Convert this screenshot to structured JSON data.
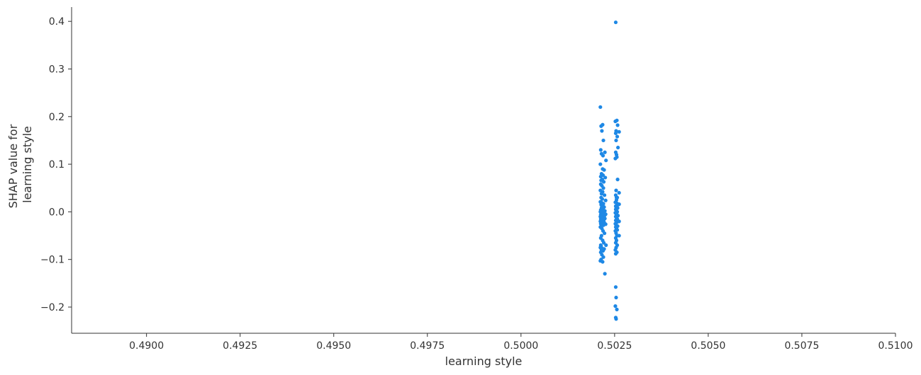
{
  "chart_data": {
    "type": "scatter",
    "xlabel": "learning style",
    "ylabel_lines": [
      "SHAP value for",
      "learning style"
    ],
    "xlim": [
      0.488,
      0.51
    ],
    "ylim": [
      -0.255,
      0.43
    ],
    "xticks": [
      0.49,
      0.4925,
      0.495,
      0.4975,
      0.5,
      0.5025,
      0.505,
      0.5075,
      0.51
    ],
    "xtick_labels": [
      "0.4900",
      "0.4925",
      "0.4950",
      "0.4975",
      "0.5000",
      "0.5025",
      "0.5050",
      "0.5075",
      "0.5100"
    ],
    "yticks": [
      -0.2,
      -0.1,
      0.0,
      0.1,
      0.2,
      0.3,
      0.4
    ],
    "ytick_labels": [
      "−0.2",
      "−0.1",
      "0.0",
      "0.1",
      "0.2",
      "0.3",
      "0.4"
    ],
    "grid": false,
    "point_color": "#1E88E5",
    "series": [
      {
        "x": [
          0.50212,
          0.50218,
          0.50214,
          0.50216,
          0.5022,
          0.50213,
          0.50224,
          0.50215,
          0.50219,
          0.50227,
          0.50212,
          0.50218,
          0.50222,
          0.50215,
          0.50219,
          0.50213,
          0.50225,
          0.50217,
          0.50214,
          0.50221,
          0.50213,
          0.50216,
          0.5022,
          0.50212,
          0.50218,
          0.50215,
          0.50223,
          0.50214,
          0.50217,
          0.50226,
          0.50212,
          0.50216,
          0.5022,
          0.50214,
          0.50218,
          0.50222,
          0.50215,
          0.50219,
          0.50213,
          0.50224,
          0.50212,
          0.50217,
          0.50221,
          0.50215,
          0.50219,
          0.50226,
          0.50213,
          0.50218,
          0.50223,
          0.50216,
          0.50212,
          0.5022,
          0.50215,
          0.50218,
          0.50224,
          0.50213,
          0.50217,
          0.50221,
          0.50214,
          0.50219,
          0.50212,
          0.50216,
          0.50222,
          0.50215,
          0.50218,
          0.50213,
          0.50226,
          0.50217,
          0.5022,
          0.50214,
          0.50212,
          0.50216,
          0.50219,
          0.50223,
          0.50215,
          0.50213,
          0.50218,
          0.50221,
          0.50227,
          0.50214,
          0.50212,
          0.50217,
          0.50222,
          0.50215,
          0.50219,
          0.50213,
          0.50216,
          0.5022,
          0.50214,
          0.50212,
          0.50218,
          0.50213,
          0.50216,
          0.50224,
          0.50253,
          0.50256,
          0.50252,
          0.50258,
          0.50254,
          0.50262,
          0.50253,
          0.50257,
          0.50254,
          0.50259,
          0.50253,
          0.50255,
          0.50256,
          0.50252,
          0.50258,
          0.50254,
          0.50262,
          0.50253,
          0.50257,
          0.50255,
          0.50252,
          0.50256,
          0.50259,
          0.50253,
          0.50254,
          0.50258,
          0.50253,
          0.50262,
          0.50255,
          0.50257,
          0.50252,
          0.50254,
          0.50256,
          0.50259,
          0.50253,
          0.50255,
          0.50257,
          0.50253,
          0.50262,
          0.50256,
          0.50252,
          0.50254,
          0.50258,
          0.50253,
          0.50255,
          0.50257,
          0.50252,
          0.50254,
          0.50256,
          0.50253,
          0.50262,
          0.50255,
          0.50253,
          0.50257,
          0.50254,
          0.50252,
          0.50256,
          0.50253,
          0.50255,
          0.50253,
          0.50254,
          0.50252,
          0.50256,
          0.50253,
          0.50254,
          0.50255
        ],
        "y": [
          0.22,
          0.183,
          0.18,
          0.17,
          0.15,
          0.13,
          0.125,
          0.122,
          0.118,
          0.108,
          0.1,
          0.09,
          0.088,
          0.08,
          0.077,
          0.074,
          0.072,
          0.068,
          0.066,
          0.063,
          0.058,
          0.055,
          0.05,
          0.045,
          0.042,
          0.038,
          0.035,
          0.03,
          0.027,
          0.024,
          0.021,
          0.019,
          0.017,
          0.015,
          0.012,
          0.01,
          0.008,
          0.006,
          0.004,
          0.002,
          0.0,
          -0.001,
          -0.002,
          -0.003,
          -0.004,
          -0.005,
          -0.006,
          -0.007,
          -0.008,
          -0.009,
          -0.01,
          -0.011,
          -0.012,
          -0.013,
          -0.014,
          -0.015,
          -0.016,
          -0.017,
          -0.018,
          -0.019,
          -0.02,
          -0.021,
          -0.022,
          -0.023,
          -0.024,
          -0.025,
          -0.026,
          -0.027,
          -0.028,
          -0.03,
          -0.032,
          -0.035,
          -0.04,
          -0.045,
          -0.05,
          -0.055,
          -0.06,
          -0.065,
          -0.07,
          -0.072,
          -0.075,
          -0.077,
          -0.078,
          -0.08,
          -0.082,
          -0.085,
          -0.09,
          -0.095,
          -0.1,
          -0.103,
          -0.105,
          -0.07,
          0.01,
          -0.13,
          0.398,
          0.192,
          0.19,
          0.182,
          0.17,
          0.168,
          0.165,
          0.158,
          0.15,
          0.135,
          0.125,
          0.12,
          0.115,
          0.112,
          0.068,
          0.045,
          0.04,
          0.035,
          0.03,
          0.025,
          0.02,
          0.018,
          0.015,
          0.012,
          0.01,
          0.008,
          0.005,
          0.016,
          0.002,
          0.0,
          -0.002,
          -0.004,
          -0.006,
          -0.008,
          -0.01,
          -0.012,
          -0.015,
          -0.018,
          -0.02,
          -0.022,
          -0.025,
          -0.028,
          -0.03,
          -0.032,
          -0.035,
          -0.038,
          -0.04,
          -0.045,
          -0.05,
          -0.055,
          -0.05,
          -0.06,
          -0.065,
          -0.07,
          -0.075,
          -0.08,
          -0.085,
          -0.088,
          -0.033,
          -0.158,
          -0.18,
          -0.198,
          -0.205,
          -0.222,
          -0.225,
          0.03
        ]
      }
    ]
  }
}
